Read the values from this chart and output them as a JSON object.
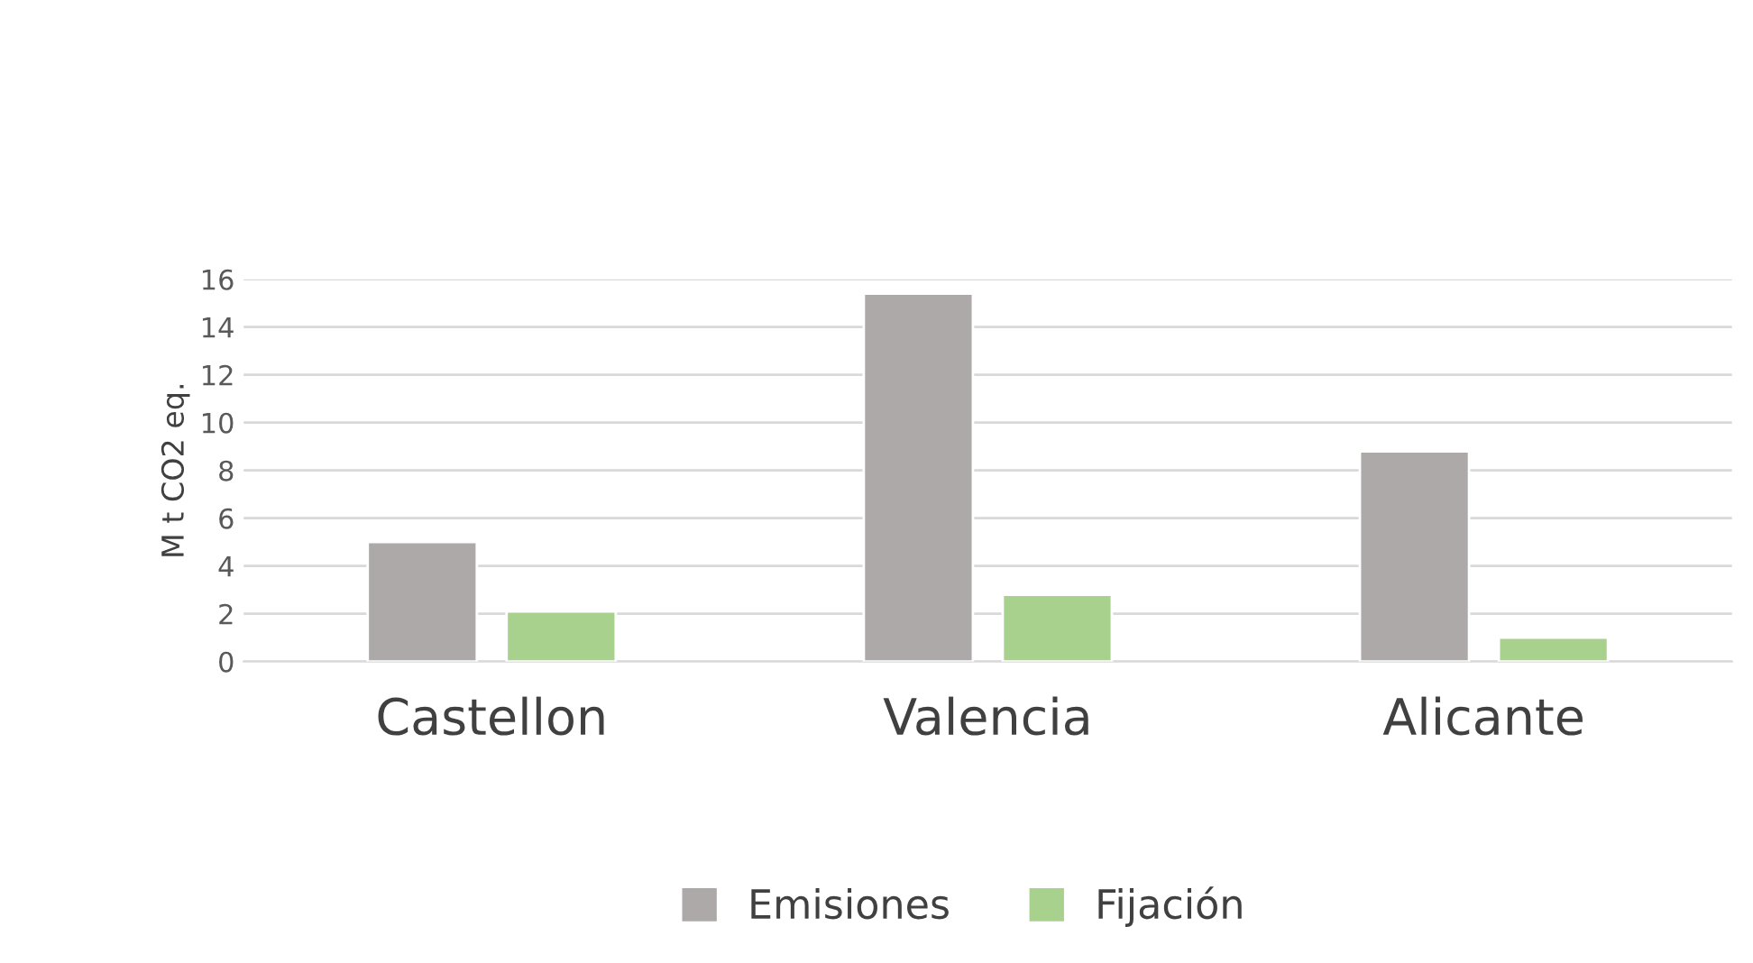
{
  "chart_data": {
    "type": "bar",
    "ylabel": "M t CO2 eq.",
    "categories": [
      "Castellon",
      "Valencia",
      "Alicante"
    ],
    "series": [
      {
        "name": "Emisiones",
        "color": "#ada9a9",
        "values": [
          5.0,
          15.4,
          8.8
        ]
      },
      {
        "name": "Fijación",
        "color": "#a9d18e",
        "values": [
          2.1,
          2.8,
          1.0
        ]
      }
    ],
    "ylim": [
      0,
      16
    ],
    "yticks": [
      0,
      2,
      4,
      6,
      8,
      10,
      12,
      14,
      16
    ],
    "grid": "y",
    "legend": "bottom"
  }
}
